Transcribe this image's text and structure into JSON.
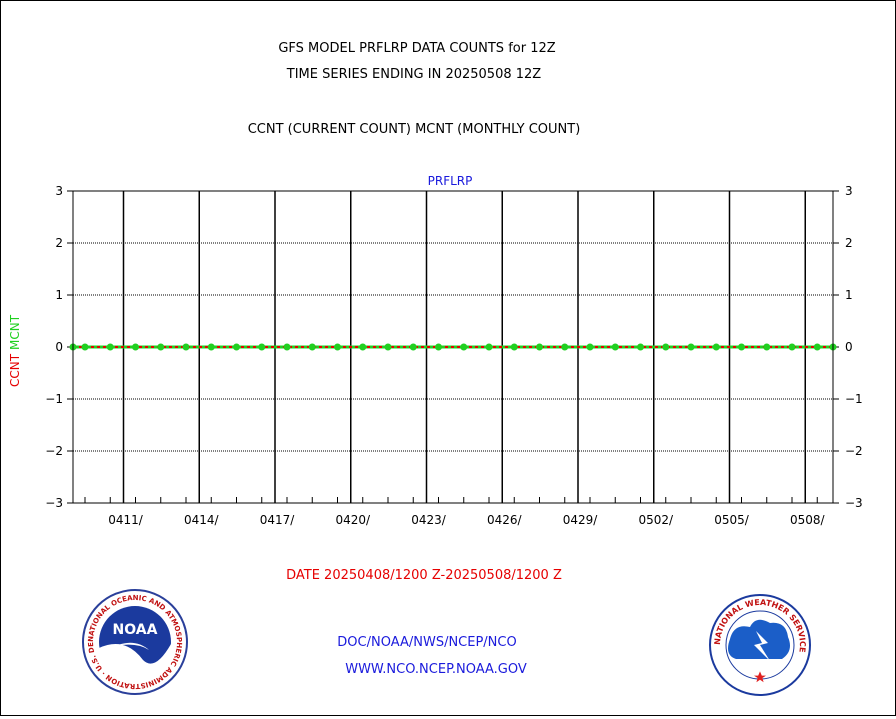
{
  "header": {
    "title_line1": "GFS MODEL PRFLRP DATA COUNTS for 12Z",
    "title_line2": "TIME SERIES ENDING IN 20250508 12Z",
    "legend_line": "CCNT (CURRENT COUNT) MCNT (MONTHLY COUNT)"
  },
  "footer": {
    "date_range": "DATE 20250408/1200 Z-20250508/1200 Z",
    "org_line": "DOC/NOAA/NWS/NCEP/NCO",
    "url_line": "WWW.NCO.NCEP.NOAA.GOV",
    "left_logo_text": "NOAA",
    "left_logo_ring": "NATIONAL OCEANIC AND ATMOSPHERIC ADMINISTRATION · U.S. DEPARTMENT OF COMMERCE",
    "right_logo_ring": "NATIONAL WEATHER SERVICE"
  },
  "colors": {
    "ccnt": "#e60000",
    "mcnt": "#20d020",
    "plot_title": "#1a1adc",
    "footer_text": "#1a1adc",
    "date_text": "#e60000"
  },
  "chart_data": {
    "type": "line",
    "title": "PRFLRP",
    "ylabel_parts": [
      "CCNT",
      "MCNT"
    ],
    "ylim": [
      -3,
      3
    ],
    "yticks": [
      -3,
      -2,
      -1,
      0,
      1,
      2,
      3
    ],
    "x": [
      "0409",
      "0410",
      "0411",
      "0412",
      "0413",
      "0414",
      "0415",
      "0416",
      "0417",
      "0418",
      "0419",
      "0420",
      "0421",
      "0422",
      "0423",
      "0424",
      "0425",
      "0426",
      "0427",
      "0428",
      "0429",
      "0430",
      "0501",
      "0502",
      "0503",
      "0504",
      "0505",
      "0506",
      "0507",
      "0508"
    ],
    "xtick_labels": [
      "0411/",
      "0414/",
      "0417/",
      "0420/",
      "0423/",
      "0426/",
      "0429/",
      "0502/",
      "0505/",
      "0508/"
    ],
    "series": [
      {
        "name": "CCNT",
        "values": [
          0,
          0,
          0,
          0,
          0,
          0,
          0,
          0,
          0,
          0,
          0,
          0,
          0,
          0,
          0,
          0,
          0,
          0,
          0,
          0,
          0,
          0,
          0,
          0,
          0,
          0,
          0,
          0,
          0,
          0
        ]
      },
      {
        "name": "MCNT",
        "values": [
          0,
          0,
          0,
          0,
          0,
          0,
          0,
          0,
          0,
          0,
          0,
          0,
          0,
          0,
          0,
          0,
          0,
          0,
          0,
          0,
          0,
          0,
          0,
          0,
          0,
          0,
          0,
          0,
          0,
          0
        ]
      }
    ],
    "grid": true
  }
}
